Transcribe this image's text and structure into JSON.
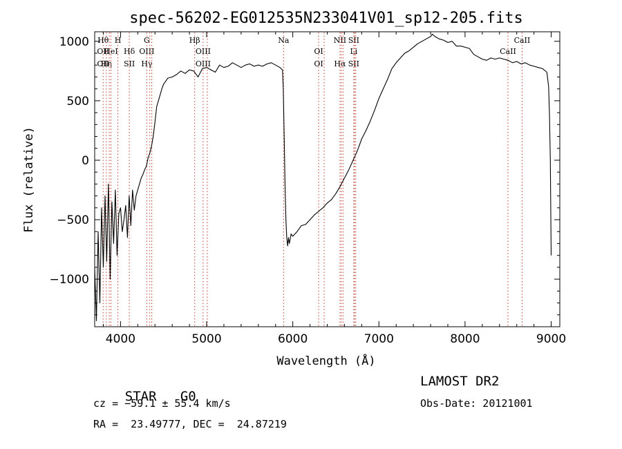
{
  "chart_data": {
    "type": "line",
    "title": "spec-56202-EG012535N233041V01_sp12-205.fits",
    "xlabel": "Wavelength (Å)",
    "ylabel": "Flux (relative)",
    "xlim": [
      3700,
      9100
    ],
    "ylim": [
      -1400,
      1080
    ],
    "xticks": [
      4000,
      5000,
      6000,
      7000,
      8000,
      9000
    ],
    "yticks": [
      -1000,
      -500,
      0,
      500,
      1000
    ],
    "series": [
      {
        "x": [
          3700,
          3720,
          3740,
          3760,
          3780,
          3800,
          3820,
          3840,
          3860,
          3880,
          3900,
          3920,
          3940,
          3960,
          3980,
          4000,
          4020,
          4040,
          4060,
          4080,
          4100,
          4120,
          4140,
          4160,
          4180,
          4200,
          4220,
          4240,
          4260,
          4280,
          4300,
          4320,
          4340,
          4360,
          4380,
          4400,
          4420,
          4440,
          4460,
          4480,
          4500,
          4550,
          4600,
          4650,
          4700,
          4750,
          4800,
          4850,
          4900,
          4950,
          5000,
          5050,
          5100,
          5150,
          5200,
          5250,
          5300,
          5350,
          5400,
          5450,
          5500,
          5550,
          5600,
          5650,
          5700,
          5750,
          5800,
          5850,
          5880,
          5890,
          5900,
          5910,
          5920,
          5930,
          5940,
          5950,
          5960,
          5980,
          6000,
          6050,
          6100,
          6150,
          6200,
          6250,
          6300,
          6350,
          6400,
          6450,
          6500,
          6550,
          6600,
          6650,
          6700,
          6750,
          6800,
          6850,
          6900,
          6950,
          7000,
          7050,
          7100,
          7150,
          7200,
          7250,
          7300,
          7350,
          7400,
          7450,
          7500,
          7550,
          7600,
          7620,
          7650,
          7700,
          7750,
          7800,
          7850,
          7900,
          7950,
          8000,
          8050,
          8100,
          8150,
          8200,
          8250,
          8300,
          8350,
          8400,
          8450,
          8500,
          8550,
          8600,
          8650,
          8700,
          8750,
          8800,
          8850,
          8900,
          8950,
          8970,
          8980,
          8990,
          9000
        ],
        "y": [
          -900,
          -1350,
          -600,
          -1200,
          -400,
          -900,
          -300,
          -850,
          -200,
          -1000,
          -350,
          -700,
          -250,
          -800,
          -450,
          -400,
          -600,
          -500,
          -380,
          -650,
          -300,
          -550,
          -250,
          -420,
          -300,
          -250,
          -200,
          -150,
          -120,
          -80,
          -50,
          20,
          60,
          120,
          200,
          320,
          450,
          500,
          550,
          600,
          640,
          690,
          700,
          720,
          750,
          730,
          760,
          750,
          700,
          770,
          780,
          760,
          740,
          800,
          780,
          790,
          820,
          800,
          780,
          800,
          810,
          790,
          800,
          790,
          810,
          820,
          800,
          780,
          760,
          600,
          200,
          -200,
          -500,
          -650,
          -720,
          -650,
          -700,
          -620,
          -640,
          -600,
          -550,
          -540,
          -500,
          -460,
          -430,
          -400,
          -360,
          -330,
          -280,
          -220,
          -150,
          -80,
          0,
          80,
          180,
          250,
          330,
          420,
          520,
          600,
          680,
          770,
          820,
          860,
          900,
          920,
          950,
          980,
          1000,
          1020,
          1040,
          1060,
          1040,
          1020,
          1010,
          990,
          1000,
          960,
          960,
          950,
          940,
          890,
          870,
          850,
          840,
          860,
          850,
          860,
          850,
          840,
          820,
          830,
          810,
          820,
          800,
          790,
          780,
          770,
          740,
          620,
          400,
          0,
          -800
        ]
      }
    ],
    "emission_lines": [
      {
        "top": "Hθ",
        "mid": "OII",
        "bot": "OII",
        "x": 3798
      },
      {
        "top": "",
        "mid": "",
        "bot": "Hη",
        "x": 3835
      },
      {
        "top": "",
        "mid": "HeI",
        "bot": "",
        "x": 3889
      },
      {
        "top": "",
        "mid": "",
        "bot": "",
        "x": 3869
      },
      {
        "top": "H",
        "mid": "",
        "bot": "",
        "x": 3969
      },
      {
        "top": "",
        "mid": "Hδ",
        "bot": "SII",
        "x": 4102
      },
      {
        "top": "G",
        "mid": "OIII",
        "bot": "Hγ",
        "x": 4305
      },
      {
        "top": "",
        "mid": "",
        "bot": "",
        "x": 4340
      },
      {
        "top": "",
        "mid": "",
        "bot": "",
        "x": 4363
      },
      {
        "top": "Hβ",
        "mid": "",
        "bot": "",
        "x": 4861
      },
      {
        "top": "",
        "mid": "OIII",
        "bot": "OIII",
        "x": 4959
      },
      {
        "top": "",
        "mid": "",
        "bot": "",
        "x": 5007
      },
      {
        "top": "Na",
        "mid": "",
        "bot": "",
        "x": 5893
      },
      {
        "top": "",
        "mid": "OI",
        "bot": "OI",
        "x": 6300
      },
      {
        "top": "",
        "mid": "",
        "bot": "",
        "x": 6364
      },
      {
        "top": "NII",
        "mid": "",
        "bot": "Hα",
        "x": 6548
      },
      {
        "top": "",
        "mid": "",
        "bot": "",
        "x": 6563
      },
      {
        "top": "",
        "mid": "",
        "bot": "",
        "x": 6583
      },
      {
        "top": "SII",
        "mid": "Li",
        "bot": "SII",
        "x": 6708
      },
      {
        "top": "",
        "mid": "",
        "bot": "",
        "x": 6717
      },
      {
        "top": "",
        "mid": "",
        "bot": "",
        "x": 6731
      },
      {
        "top": "",
        "mid": "CaII",
        "bot": "",
        "x": 8498
      },
      {
        "top": "CaII",
        "mid": "",
        "bot": "",
        "x": 8662
      }
    ],
    "colors": {
      "data": "#000000",
      "line_markers": "#c0392b",
      "axes": "#000000"
    }
  },
  "info": {
    "class": "STAR",
    "subclass": "G0",
    "cz": "cz = −59.1 ± 55.4 km/s",
    "radec": "RA =  23.49777, DEC =  24.87219",
    "survey": "LAMOST DR2",
    "obsdate": "Obs-Date: 20121001"
  }
}
